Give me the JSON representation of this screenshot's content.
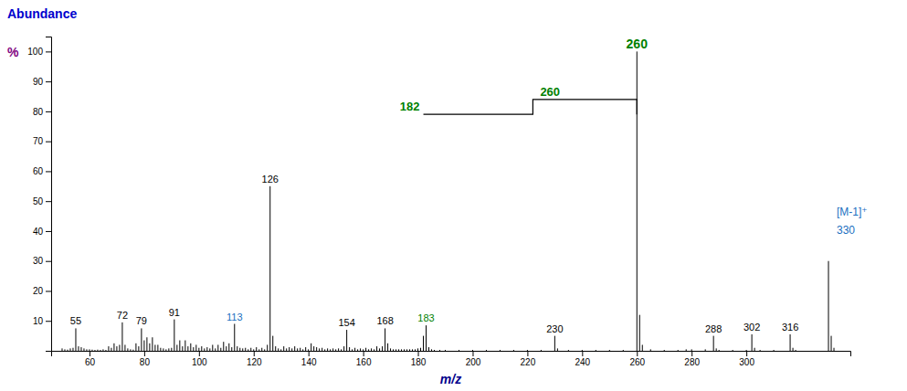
{
  "chart_data": {
    "type": "bar",
    "xlabel": "m/z",
    "xlabel_color": "#00008B",
    "ylabel": [
      "Abundance",
      "%"
    ],
    "ylabel_colors": [
      "#0000CD",
      "#800080"
    ],
    "xlim": [
      46,
      338
    ],
    "ylim": [
      0,
      105
    ],
    "xticks": [
      60,
      80,
      100,
      120,
      140,
      160,
      180,
      200,
      220,
      240,
      260,
      280,
      300
    ],
    "yticks": [
      10,
      20,
      30,
      40,
      50,
      60,
      70,
      80,
      90,
      100
    ],
    "grid": false,
    "color": "#000000",
    "x": [
      50,
      51,
      52,
      53,
      54,
      55,
      56,
      57,
      58,
      59,
      60,
      61,
      62,
      63,
      64,
      65,
      66,
      67,
      68,
      69,
      70,
      71,
      72,
      73,
      74,
      75,
      76,
      77,
      78,
      79,
      80,
      81,
      82,
      83,
      84,
      85,
      86,
      87,
      88,
      89,
      90,
      91,
      92,
      93,
      94,
      95,
      96,
      97,
      98,
      99,
      100,
      101,
      102,
      103,
      104,
      105,
      106,
      107,
      108,
      109,
      110,
      111,
      112,
      113,
      114,
      115,
      116,
      117,
      118,
      119,
      120,
      121,
      122,
      123,
      124,
      125,
      126,
      127,
      128,
      129,
      130,
      131,
      132,
      133,
      134,
      135,
      136,
      137,
      138,
      139,
      140,
      141,
      142,
      143,
      144,
      145,
      146,
      147,
      148,
      149,
      150,
      151,
      152,
      153,
      154,
      155,
      156,
      157,
      158,
      159,
      160,
      161,
      162,
      163,
      164,
      165,
      166,
      167,
      168,
      169,
      170,
      171,
      172,
      173,
      174,
      175,
      176,
      177,
      178,
      179,
      180,
      181,
      182,
      183,
      184,
      185,
      186,
      188,
      190,
      195,
      200,
      205,
      210,
      215,
      220,
      225,
      230,
      231,
      235,
      240,
      245,
      250,
      255,
      260,
      261,
      262,
      265,
      270,
      275,
      278,
      280,
      285,
      288,
      289,
      290,
      295,
      300,
      302,
      303,
      305,
      310,
      316,
      317,
      318,
      330,
      331,
      332
    ],
    "values": [
      0.8,
      0.5,
      0.4,
      0.8,
      1.0,
      7.5,
      1.5,
      1.2,
      0.8,
      0.5,
      0.5,
      0.4,
      0.3,
      0.4,
      0.3,
      0.5,
      0.3,
      1.5,
      1.0,
      2.5,
      1.5,
      2.0,
      9.5,
      2.0,
      0.8,
      0.5,
      0.4,
      2.5,
      1.5,
      7.5,
      3.5,
      4.5,
      2.5,
      4.5,
      2.0,
      2.0,
      1.0,
      0.8,
      0.5,
      0.8,
      1.0,
      10.5,
      2.0,
      3.5,
      1.5,
      3.5,
      1.5,
      2.5,
      1.2,
      2.0,
      1.0,
      1.5,
      0.8,
      1.2,
      0.8,
      2.0,
      0.8,
      2.0,
      1.0,
      3.0,
      1.5,
      2.5,
      1.2,
      9.0,
      1.5,
      1.0,
      0.8,
      1.0,
      0.5,
      1.0,
      0.5,
      1.2,
      0.5,
      1.0,
      0.5,
      2.0,
      55.0,
      5.0,
      1.5,
      0.8,
      0.5,
      1.5,
      0.8,
      1.2,
      0.8,
      1.5,
      0.8,
      1.0,
      0.5,
      1.2,
      0.5,
      2.5,
      1.5,
      1.2,
      0.8,
      1.0,
      0.5,
      0.8,
      0.5,
      0.8,
      0.5,
      0.8,
      0.5,
      1.5,
      7.0,
      1.2,
      0.5,
      1.0,
      0.5,
      0.8,
      0.5,
      1.0,
      0.5,
      0.8,
      0.5,
      1.5,
      0.8,
      1.5,
      7.5,
      2.5,
      0.8,
      0.5,
      0.5,
      0.5,
      0.5,
      0.5,
      0.5,
      0.5,
      0.5,
      0.5,
      0.8,
      1.0,
      5.0,
      8.5,
      1.2,
      0.5,
      0.3,
      0.3,
      0.3,
      0.3,
      0.3,
      0.3,
      0.3,
      0.3,
      0.3,
      0.3,
      5.0,
      0.8,
      0.3,
      0.3,
      0.3,
      0.3,
      0.3,
      100.0,
      12.0,
      2.0,
      0.5,
      0.3,
      0.3,
      0.5,
      0.5,
      0.5,
      5.0,
      0.8,
      0.3,
      0.3,
      0.3,
      5.5,
      1.0,
      0.3,
      0.3,
      5.5,
      1.0,
      0.3,
      30.0,
      5.0,
      1.0
    ],
    "peak_labels": [
      {
        "x": 55,
        "label": "55",
        "color": "#000000"
      },
      {
        "x": 72,
        "label": "72",
        "color": "#000000"
      },
      {
        "x": 79,
        "label": "79",
        "color": "#000000"
      },
      {
        "x": 91,
        "label": "91",
        "color": "#000000"
      },
      {
        "x": 113,
        "label": "113",
        "color": "#1a6fbf"
      },
      {
        "x": 126,
        "label": "126",
        "color": "#000000"
      },
      {
        "x": 154,
        "label": "154",
        "color": "#000000"
      },
      {
        "x": 168,
        "label": "168",
        "color": "#000000"
      },
      {
        "x": 183,
        "label": "183",
        "color": "#008000"
      },
      {
        "x": 230,
        "label": "230",
        "color": "#000000"
      },
      {
        "x": 288,
        "label": "288",
        "color": "#000000"
      },
      {
        "x": 302,
        "label": "302",
        "color": "#000000"
      },
      {
        "x": 316,
        "label": "316",
        "color": "#000000"
      }
    ],
    "bracket": {
      "x": [
        182,
        222,
        222,
        260,
        260
      ],
      "y": [
        79,
        79,
        84,
        84,
        79
      ],
      "labels": [
        "182",
        "260"
      ],
      "color": "#008000"
    },
    "annotations": [
      {
        "text": "260",
        "x": 260,
        "y": 101,
        "color": "#008000",
        "align": "center"
      },
      {
        "text": "[M-1]⁺",
        "x": 333,
        "y": 46,
        "color": "#1a6fbf",
        "align": "left"
      },
      {
        "text": "330",
        "x": 333,
        "y": 40,
        "color": "#1a6fbf",
        "align": "left"
      }
    ]
  }
}
